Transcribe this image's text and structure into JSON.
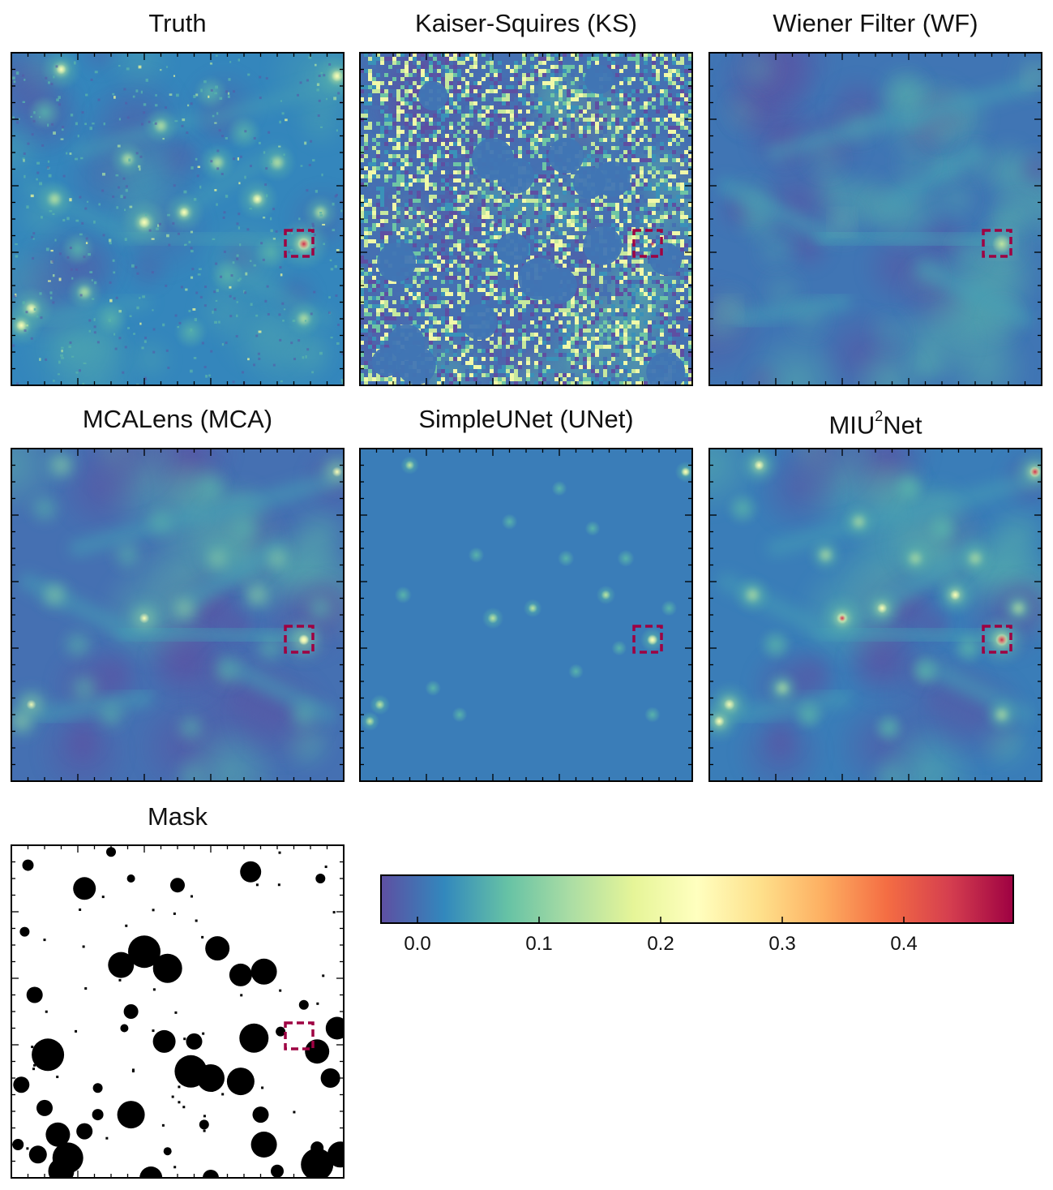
{
  "panels": [
    {
      "id": "truth",
      "title": "Truth",
      "variant": "truth"
    },
    {
      "id": "ks",
      "title": "Kaiser-Squires (KS)",
      "variant": "ks"
    },
    {
      "id": "wf",
      "title": "Wiener Filter (WF)",
      "variant": "wf"
    },
    {
      "id": "mca",
      "title": "MCALens (MCA)",
      "variant": "mca"
    },
    {
      "id": "unet",
      "title": "SimpleUNet (UNet)",
      "variant": "unet"
    },
    {
      "id": "miu",
      "title_main": "MIU",
      "title_sup": "2",
      "title_tail": "Net",
      "variant": "miu"
    },
    {
      "id": "mask",
      "title": "Mask",
      "variant": "mask"
    }
  ],
  "chart_data": {
    "type": "heatmap",
    "colormap": "Spectral_r",
    "colormap_stops": [
      "#5e4fa2",
      "#3288bd",
      "#66c2a5",
      "#abdda4",
      "#e6f598",
      "#ffffbf",
      "#fee08b",
      "#fdae61",
      "#f46d43",
      "#d53e4f",
      "#9e0142"
    ],
    "colorbar": {
      "vmin": -0.03,
      "vmax": 0.49,
      "ticks": [
        0.0,
        0.1,
        0.2,
        0.3,
        0.4
      ],
      "tick_labels": [
        "0.0",
        "0.1",
        "0.2",
        "0.3",
        "0.4"
      ]
    },
    "highlight_box_color": "#9e0142",
    "highlight_box_style": "dashed",
    "mask_colors": {
      "masked": "#000000",
      "unmasked": "#ffffff"
    }
  }
}
